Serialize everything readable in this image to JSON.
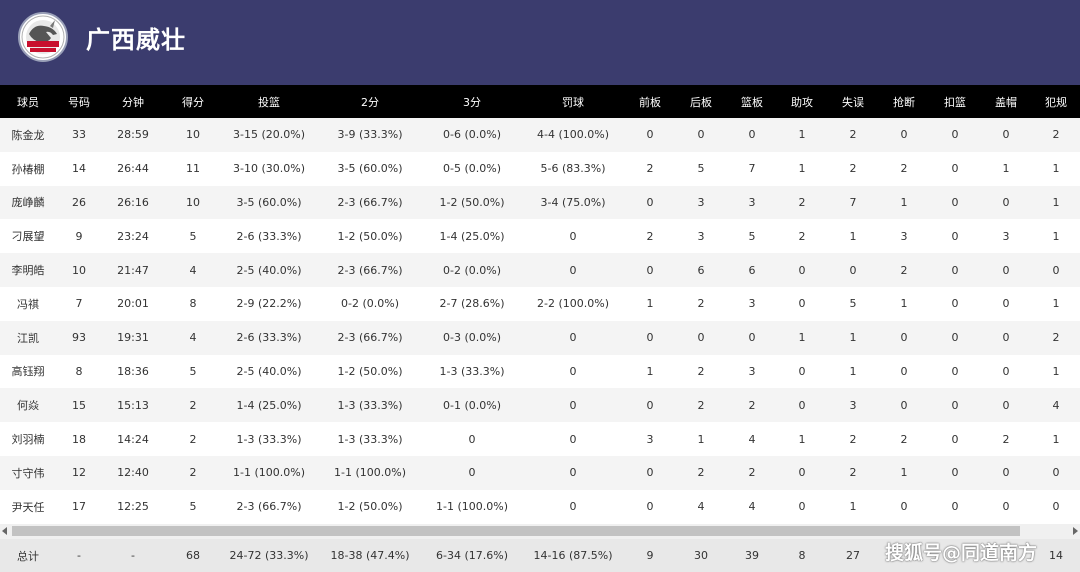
{
  "header": {
    "team_name": "广西威壮",
    "logo_icon": "rhino-team-logo-icon",
    "bg_color": "#3b3c6e"
  },
  "columns": [
    "球员",
    "号码",
    "分钟",
    "得分",
    "投篮",
    "2分",
    "3分",
    "罚球",
    "前板",
    "后板",
    "篮板",
    "助攻",
    "失误",
    "抢断",
    "扣篮",
    "盖帽",
    "犯规"
  ],
  "rows": [
    [
      "陈金龙",
      "33",
      "28:59",
      "10",
      "3-15 (20.0%)",
      "3-9 (33.3%)",
      "0-6 (0.0%)",
      "4-4 (100.0%)",
      "0",
      "0",
      "0",
      "1",
      "2",
      "0",
      "0",
      "0",
      "2"
    ],
    [
      "孙椿棚",
      "14",
      "26:44",
      "11",
      "3-10 (30.0%)",
      "3-5 (60.0%)",
      "0-5 (0.0%)",
      "5-6 (83.3%)",
      "2",
      "5",
      "7",
      "1",
      "2",
      "2",
      "0",
      "1",
      "1"
    ],
    [
      "庞峥麟",
      "26",
      "26:16",
      "10",
      "3-5 (60.0%)",
      "2-3 (66.7%)",
      "1-2 (50.0%)",
      "3-4 (75.0%)",
      "0",
      "3",
      "3",
      "2",
      "7",
      "1",
      "0",
      "0",
      "1"
    ],
    [
      "刁展望",
      "9",
      "23:24",
      "5",
      "2-6 (33.3%)",
      "1-2 (50.0%)",
      "1-4 (25.0%)",
      "0",
      "2",
      "3",
      "5",
      "2",
      "1",
      "3",
      "0",
      "3",
      "1"
    ],
    [
      "李明皓",
      "10",
      "21:47",
      "4",
      "2-5 (40.0%)",
      "2-3 (66.7%)",
      "0-2 (0.0%)",
      "0",
      "0",
      "6",
      "6",
      "0",
      "0",
      "2",
      "0",
      "0",
      "0"
    ],
    [
      "冯祺",
      "7",
      "20:01",
      "8",
      "2-9 (22.2%)",
      "0-2 (0.0%)",
      "2-7 (28.6%)",
      "2-2 (100.0%)",
      "1",
      "2",
      "3",
      "0",
      "5",
      "1",
      "0",
      "0",
      "1"
    ],
    [
      "江凯",
      "93",
      "19:31",
      "4",
      "2-6 (33.3%)",
      "2-3 (66.7%)",
      "0-3 (0.0%)",
      "0",
      "0",
      "0",
      "0",
      "1",
      "1",
      "0",
      "0",
      "0",
      "2"
    ],
    [
      "高钰翔",
      "8",
      "18:36",
      "5",
      "2-5 (40.0%)",
      "1-2 (50.0%)",
      "1-3 (33.3%)",
      "0",
      "1",
      "2",
      "3",
      "0",
      "1",
      "0",
      "0",
      "0",
      "1"
    ],
    [
      "何焱",
      "15",
      "15:13",
      "2",
      "1-4 (25.0%)",
      "1-3 (33.3%)",
      "0-1 (0.0%)",
      "0",
      "0",
      "2",
      "2",
      "0",
      "3",
      "0",
      "0",
      "0",
      "4"
    ],
    [
      "刘羽楠",
      "18",
      "14:24",
      "2",
      "1-3 (33.3%)",
      "1-3 (33.3%)",
      "0",
      "0",
      "3",
      "1",
      "4",
      "1",
      "2",
      "2",
      "0",
      "2",
      "1"
    ],
    [
      "寸守伟",
      "12",
      "12:40",
      "2",
      "1-1 (100.0%)",
      "1-1 (100.0%)",
      "0",
      "0",
      "0",
      "2",
      "2",
      "0",
      "2",
      "1",
      "0",
      "0",
      "0"
    ],
    [
      "尹天任",
      "17",
      "12:25",
      "5",
      "2-3 (66.7%)",
      "1-2 (50.0%)",
      "1-1 (100.0%)",
      "0",
      "0",
      "4",
      "4",
      "0",
      "1",
      "0",
      "0",
      "0",
      "0"
    ]
  ],
  "total": [
    "总计",
    "-",
    "-",
    "68",
    "24-72 (33.3%)",
    "18-38 (47.4%)",
    "6-34 (17.6%)",
    "14-16 (87.5%)",
    "9",
    "30",
    "39",
    "8",
    "27",
    "",
    "",
    "",
    "14"
  ],
  "watermark": "搜狐号@同道南方"
}
